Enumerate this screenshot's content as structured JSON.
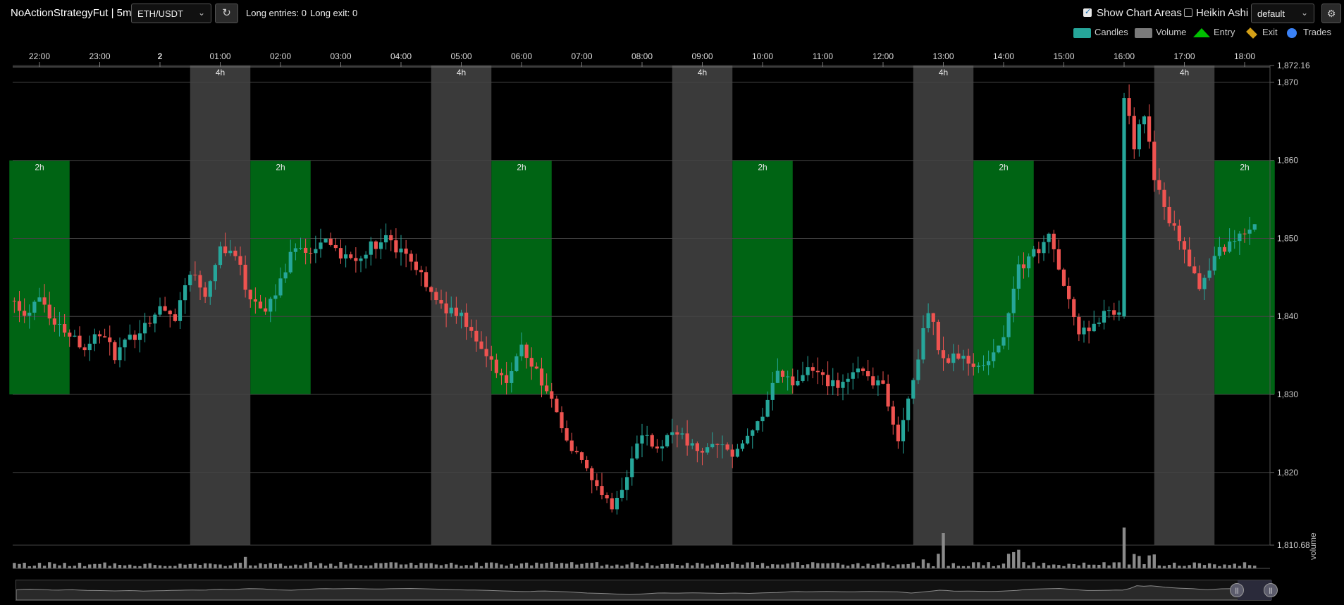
{
  "header": {
    "strategy_title": "NoActionStrategyFut | 5m",
    "pair": "ETH/USDT",
    "long_entries": "Long entries: 0",
    "long_exits": "Long exit: 0",
    "show_chart_areas_label": "Show Chart Areas",
    "show_chart_areas_checked": true,
    "heikin_ashi_label": "Heikin Ashi",
    "heikin_ashi_checked": false,
    "plot_config": "default"
  },
  "legend": {
    "candles": "Candles",
    "volume": "Volume",
    "entry": "Entry",
    "exit": "Exit",
    "trades": "Trades",
    "colors": {
      "candles": "#26a69a",
      "volume": "#7a7a7a",
      "entry": "#00c000",
      "exit": "#d4a017",
      "trades": "#3b82f6"
    }
  },
  "chart_data": {
    "type": "candlestick",
    "interval": "5m",
    "x_tick_labels": [
      "22:00",
      "23:00",
      "2",
      "01:00",
      "02:00",
      "03:00",
      "04:00",
      "05:00",
      "06:00",
      "07:00",
      "08:00",
      "09:00",
      "10:00",
      "11:00",
      "12:00",
      "13:00",
      "14:00",
      "15:00",
      "16:00",
      "17:00",
      "18:00"
    ],
    "y_tick_labels": [
      "1,872.16",
      "1,870",
      "1,860",
      "1,850",
      "1,840",
      "1,830",
      "1,820",
      "1,810.68"
    ],
    "ylim": [
      1810.68,
      1872.16
    ],
    "volume_axis_label": "volume",
    "colors": {
      "up": "#26a69a",
      "down": "#ef5350",
      "area_2h": "#006414",
      "area_4h": "#3a3a3a"
    },
    "areas": [
      {
        "label": "2h",
        "start": "21:30",
        "end": "22:30",
        "y_range": [
          1830,
          1860
        ]
      },
      {
        "label": "4h",
        "start": "00:30",
        "end": "01:30",
        "y_range": [
          1810.68,
          1872.16
        ]
      },
      {
        "label": "2h",
        "start": "01:30",
        "end": "02:30",
        "y_range": [
          1830,
          1860
        ]
      },
      {
        "label": "4h",
        "start": "04:30",
        "end": "05:30",
        "y_range": [
          1810.68,
          1872.16
        ]
      },
      {
        "label": "2h",
        "start": "05:30",
        "end": "06:30",
        "y_range": [
          1830,
          1860
        ]
      },
      {
        "label": "4h",
        "start": "08:30",
        "end": "09:30",
        "y_range": [
          1810.68,
          1872.16
        ]
      },
      {
        "label": "2h",
        "start": "09:30",
        "end": "10:30",
        "y_range": [
          1830,
          1860
        ]
      },
      {
        "label": "4h",
        "start": "12:30",
        "end": "13:30",
        "y_range": [
          1810.68,
          1872.16
        ]
      },
      {
        "label": "2h",
        "start": "13:30",
        "end": "14:30",
        "y_range": [
          1830,
          1860
        ]
      },
      {
        "label": "4h",
        "start": "16:30",
        "end": "17:30",
        "y_range": [
          1810.68,
          1872.16
        ]
      },
      {
        "label": "2h",
        "start": "17:30",
        "end": "18:30",
        "y_range": [
          1830,
          1860
        ]
      }
    ],
    "close_path": [
      [
        "21:05",
        1842
      ],
      [
        "21:15",
        1847
      ],
      [
        "21:30",
        1844
      ],
      [
        "21:45",
        1840
      ],
      [
        "22:00",
        1843
      ],
      [
        "22:15",
        1839
      ],
      [
        "22:30",
        1838
      ],
      [
        "22:45",
        1836
      ],
      [
        "23:00",
        1838
      ],
      [
        "23:15",
        1835
      ],
      [
        "23:30",
        1837
      ],
      [
        "23:45",
        1839
      ],
      [
        "00:00",
        1841
      ],
      [
        "00:15",
        1840
      ],
      [
        "00:30",
        1846
      ],
      [
        "00:45",
        1843
      ],
      [
        "01:00",
        1849
      ],
      [
        "01:15",
        1848
      ],
      [
        "01:30",
        1842
      ],
      [
        "01:45",
        1840
      ],
      [
        "02:00",
        1845
      ],
      [
        "02:15",
        1849
      ],
      [
        "02:30",
        1848
      ],
      [
        "02:45",
        1850
      ],
      [
        "03:00",
        1848
      ],
      [
        "03:15",
        1847
      ],
      [
        "03:30",
        1849
      ],
      [
        "03:45",
        1850
      ],
      [
        "04:00",
        1848
      ],
      [
        "04:15",
        1846
      ],
      [
        "04:30",
        1843
      ],
      [
        "04:45",
        1841
      ],
      [
        "05:00",
        1840
      ],
      [
        "05:15",
        1837
      ],
      [
        "05:30",
        1834
      ],
      [
        "05:45",
        1832
      ],
      [
        "06:00",
        1836
      ],
      [
        "06:15",
        1833
      ],
      [
        "06:30",
        1829
      ],
      [
        "06:45",
        1824
      ],
      [
        "07:00",
        1822
      ],
      [
        "07:15",
        1818
      ],
      [
        "07:30",
        1815
      ],
      [
        "07:45",
        1820
      ],
      [
        "08:00",
        1825
      ],
      [
        "08:15",
        1823
      ],
      [
        "08:30",
        1825
      ],
      [
        "08:45",
        1824
      ],
      [
        "09:00",
        1822
      ],
      [
        "09:15",
        1824
      ],
      [
        "09:30",
        1822
      ],
      [
        "09:45",
        1825
      ],
      [
        "10:00",
        1827
      ],
      [
        "10:15",
        1833
      ],
      [
        "10:30",
        1831
      ],
      [
        "10:45",
        1833
      ],
      [
        "11:00",
        1832
      ],
      [
        "11:15",
        1831
      ],
      [
        "11:30",
        1833
      ],
      [
        "11:45",
        1832
      ],
      [
        "12:00",
        1831
      ],
      [
        "12:15",
        1824
      ],
      [
        "12:30",
        1832
      ],
      [
        "12:45",
        1841
      ],
      [
        "13:00",
        1834
      ],
      [
        "13:15",
        1835
      ],
      [
        "13:30",
        1833
      ],
      [
        "13:45",
        1834
      ],
      [
        "14:00",
        1838
      ],
      [
        "14:15",
        1846
      ],
      [
        "14:30",
        1848
      ],
      [
        "14:45",
        1850
      ],
      [
        "15:00",
        1844
      ],
      [
        "15:15",
        1838
      ],
      [
        "15:30",
        1839
      ],
      [
        "15:45",
        1841
      ],
      [
        "15:55",
        1840
      ],
      [
        "16:00",
        1868
      ],
      [
        "16:10",
        1862
      ],
      [
        "16:20",
        1866
      ],
      [
        "16:30",
        1858
      ],
      [
        "16:45",
        1852
      ],
      [
        "17:00",
        1849
      ],
      [
        "17:15",
        1843
      ],
      [
        "17:30",
        1848
      ],
      [
        "17:45",
        1849
      ],
      [
        "18:00",
        1851
      ],
      [
        "18:15",
        1853
      ]
    ]
  },
  "navigator": {
    "handle_left": "||",
    "handle_right": "||"
  }
}
